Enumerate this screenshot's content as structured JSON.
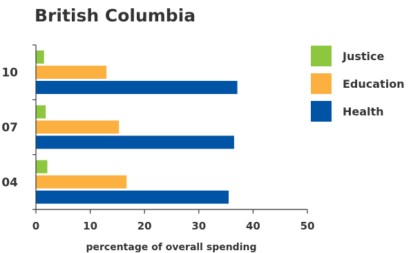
{
  "chart_data": {
    "type": "bar",
    "orientation": "horizontal",
    "title": "British Columbia",
    "xlabel": "percentage of overall spending",
    "ylabel": "",
    "xlim": [
      0,
      50
    ],
    "x_ticks": [
      0,
      10,
      20,
      30,
      40,
      50
    ],
    "categories": [
      "10",
      "07",
      "04"
    ],
    "series": [
      {
        "name": "Justice",
        "color": "#8dc63f",
        "values": [
          1.5,
          1.8,
          2.1
        ]
      },
      {
        "name": "Education",
        "color": "#fbb040",
        "values": [
          13.0,
          15.3,
          16.7
        ]
      },
      {
        "name": "Health",
        "color": "#0054a6",
        "values": [
          37.1,
          36.5,
          35.5
        ]
      }
    ],
    "legend_position": "right",
    "grid": false
  }
}
